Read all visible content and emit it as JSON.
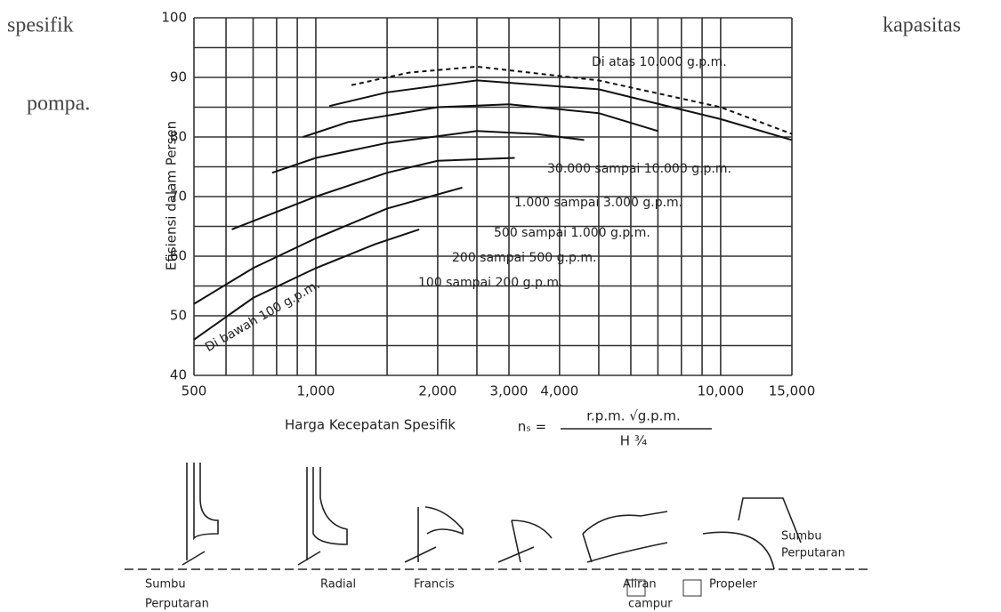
{
  "document": {
    "left_words": [
      "spesifik",
      "pompa."
    ],
    "right_word": "kapasitas"
  },
  "chart_data": {
    "type": "line",
    "ylabel": "Efisiensi dalam Persen",
    "xlabel": "Harga Kecepatan Spesifik",
    "formula": {
      "lhs": "nₛ =",
      "numerator": "r.p.m. √g.p.m.",
      "denominator": "H ¾"
    },
    "xscale": "log",
    "grid": true,
    "xlim": [
      500,
      15000
    ],
    "xticks": [
      500,
      {
        "value": 1000,
        "label": "1,000"
      },
      {
        "value": 2000,
        "label": "2,000"
      },
      {
        "value": 3000,
        "label": "3,000"
      },
      {
        "value": 4000,
        "label": "4,000"
      },
      {
        "value": 10000,
        "label": "10,000"
      },
      {
        "value": 15000,
        "label": "15,000"
      }
    ],
    "x_minor_grid": [
      600,
      700,
      800,
      900,
      1500,
      2500,
      5000,
      6000,
      7000,
      8000,
      9000
    ],
    "ylim": [
      40,
      100
    ],
    "yticks": [
      40,
      50,
      60,
      70,
      80,
      90,
      100
    ],
    "y_minor_grid": [
      45,
      55,
      65,
      75,
      85,
      95
    ],
    "series": [
      {
        "name": "Di bawah 100 g.p.m.",
        "color": "#111",
        "x": [
          500,
          700,
          1000,
          1400,
          1800
        ],
        "values": [
          46,
          53,
          58,
          62,
          64.5
        ]
      },
      {
        "name": "100 sampai 200 g.p.m.",
        "color": "#111",
        "x": [
          500,
          700,
          1000,
          1500,
          2300
        ],
        "values": [
          52,
          58,
          63,
          68,
          71.5
        ]
      },
      {
        "name": "200 sampai 500 g.p.m.",
        "color": "#111",
        "x": [
          620,
          1000,
          1500,
          2000,
          3100
        ],
        "values": [
          64.5,
          70,
          74,
          76,
          76.5
        ]
      },
      {
        "name": "500 sampai 1.000 g.p.m.",
        "color": "#111",
        "x": [
          780,
          1000,
          1500,
          2500,
          3500,
          4600
        ],
        "values": [
          74,
          76.5,
          79,
          81,
          80.5,
          79.5
        ]
      },
      {
        "name": "1.000 sampai 3.000 g.p.m.",
        "color": "#111",
        "x": [
          930,
          1200,
          2000,
          3000,
          5000,
          7000
        ],
        "values": [
          80,
          82.5,
          85,
          85.5,
          84,
          81
        ]
      },
      {
        "name": "30.000 sampai 10.000 g.p.m.",
        "color": "#111",
        "x": [
          1080,
          1500,
          2500,
          5000,
          10000,
          15000
        ],
        "values": [
          85.2,
          87.5,
          89.5,
          88,
          83,
          79.5
        ]
      },
      {
        "name": "Di atas 10.000 g.p.m.",
        "color": "#111",
        "dashed": true,
        "x": [
          1225,
          1700,
          2500,
          5000,
          10000,
          15000
        ],
        "values": [
          88.7,
          90.8,
          91.8,
          89.5,
          85,
          80.5
        ]
      }
    ],
    "impeller_labels": [
      "Sumbu",
      "Perputaran",
      "Radial",
      "Francis",
      "Aliran",
      "campur",
      "Propeler",
      "Sumbu",
      "Perputaran"
    ]
  }
}
